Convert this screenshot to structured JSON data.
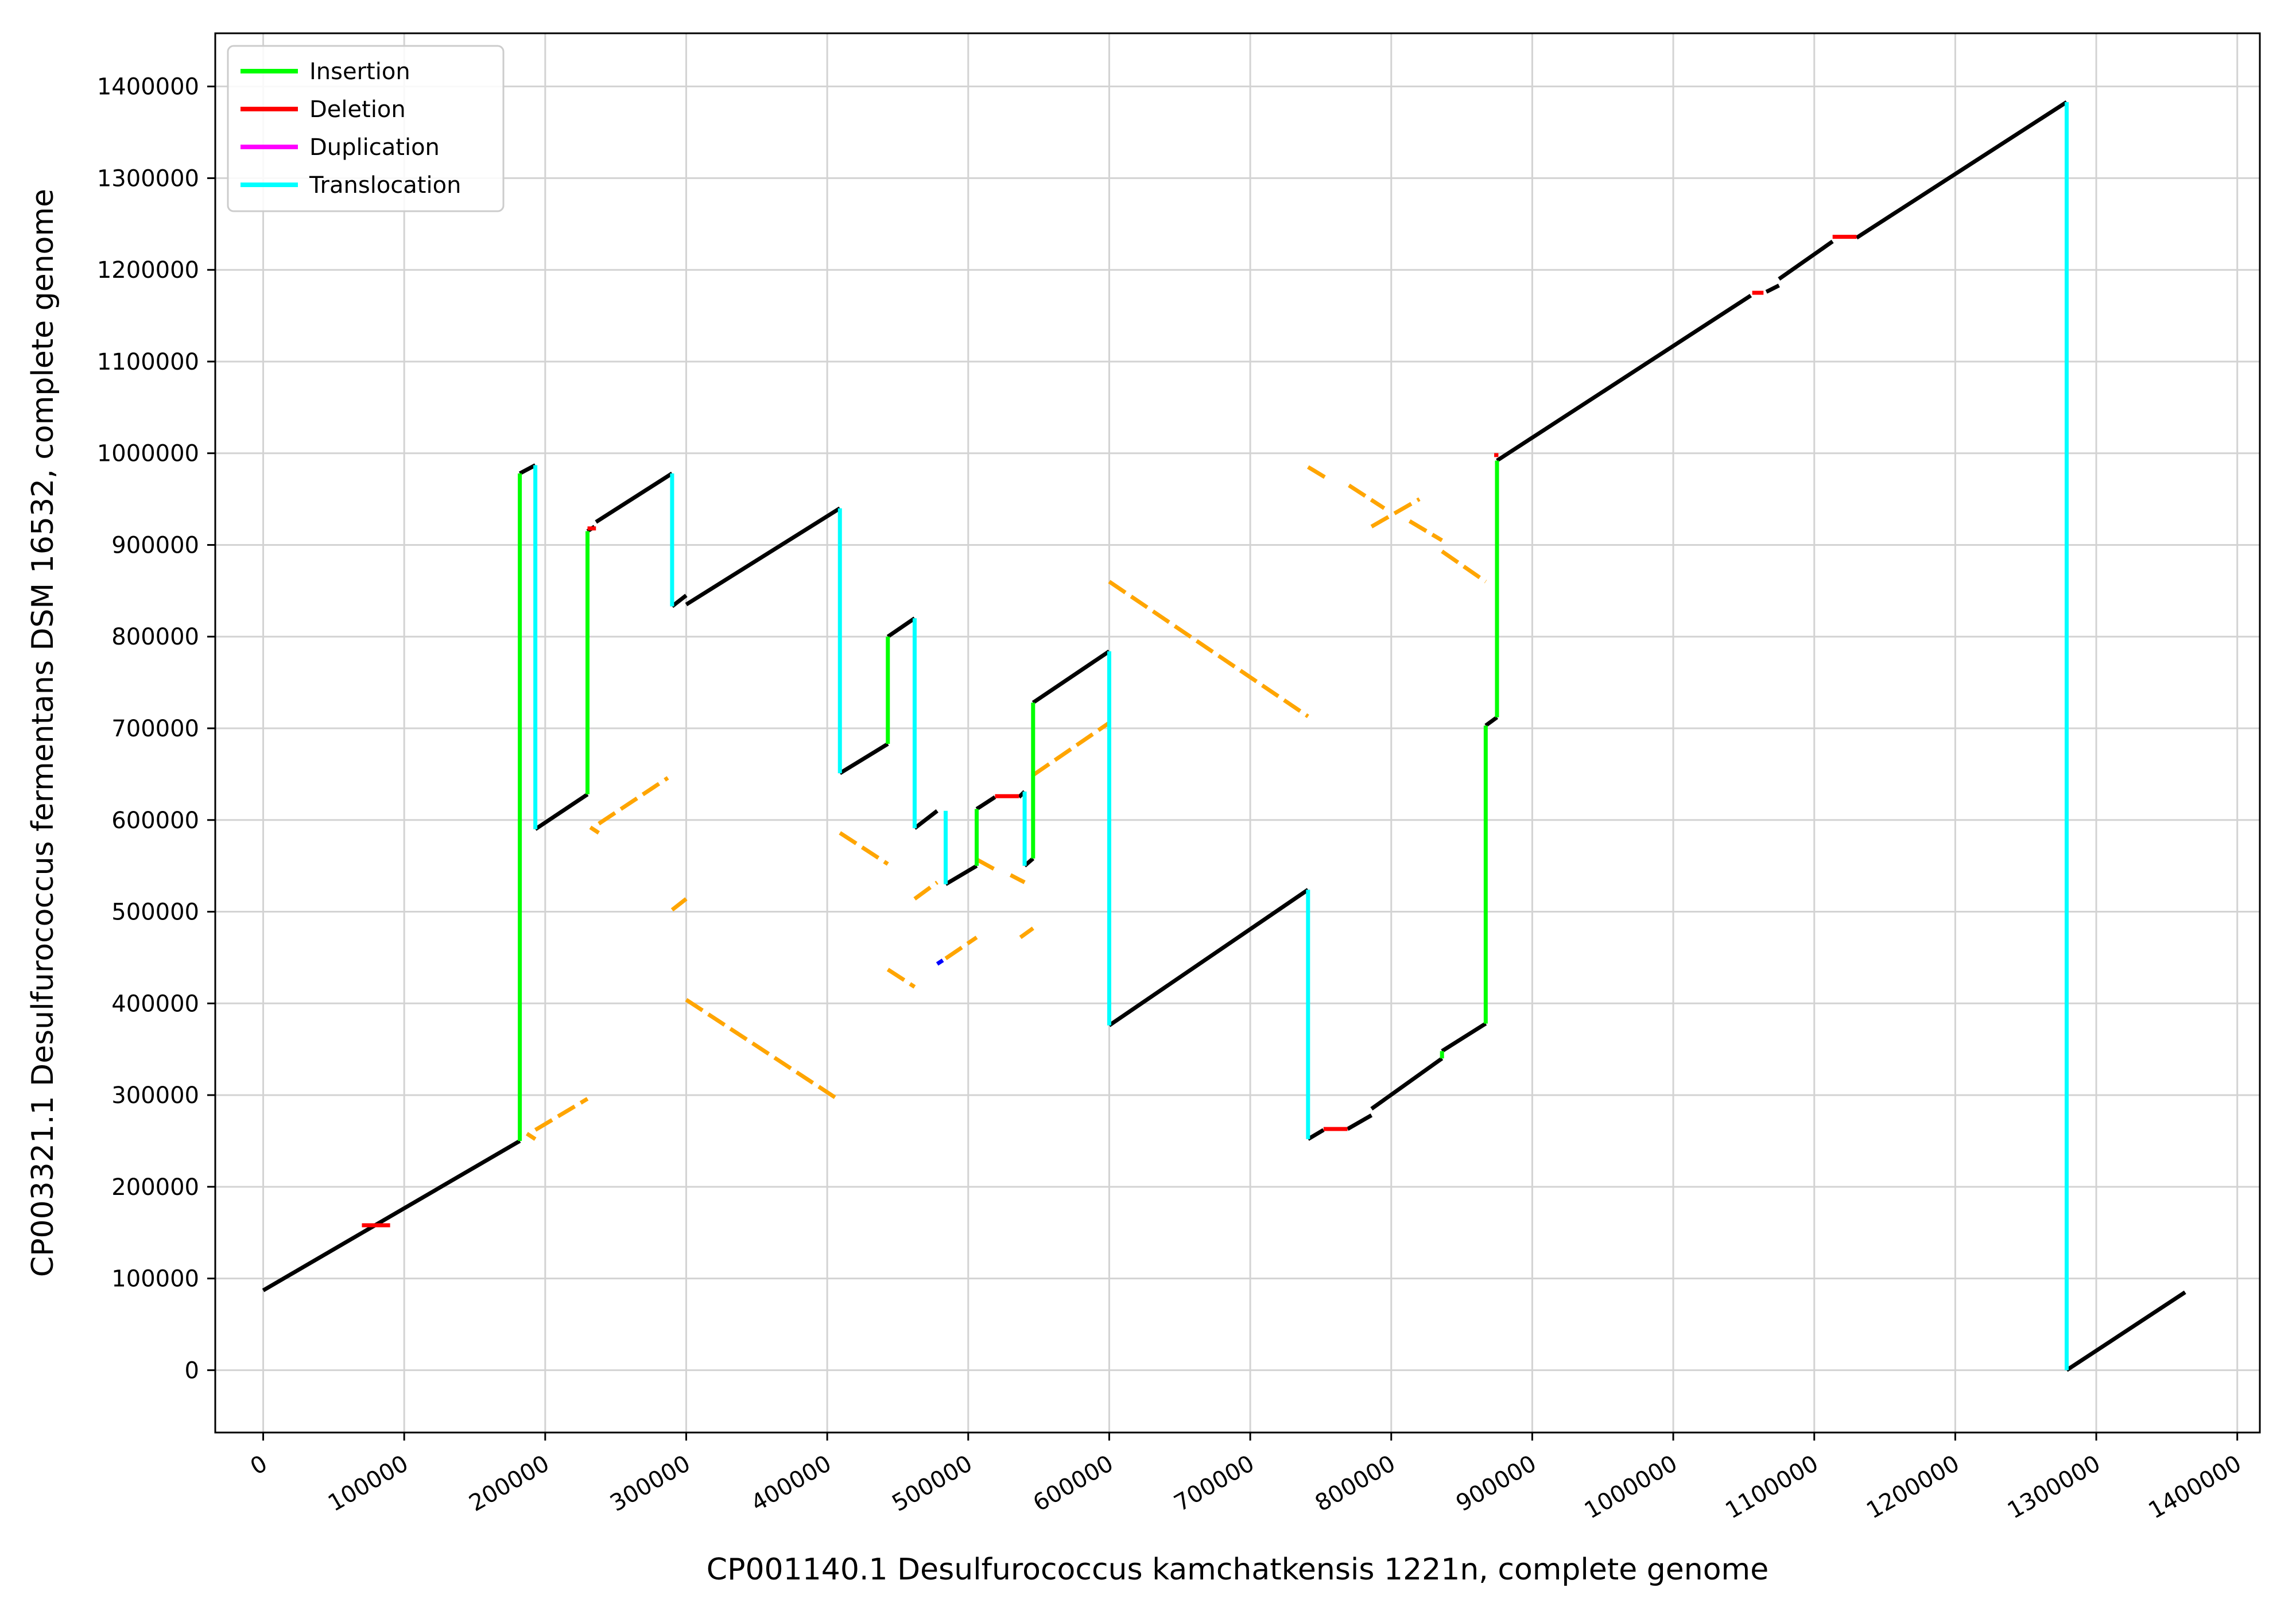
{
  "chart_data": {
    "type": "line",
    "title": "",
    "xlabel": "CP001140.1 Desulfurococcus kamchatkensis 1221n, complete genome",
    "ylabel": "CP003321.1 Desulfurococcus fermentans DSM 16532, complete genome",
    "xlim": [
      -34000,
      1416000
    ],
    "ylim": [
      -68000,
      1458000
    ],
    "x_ticks": [
      0,
      100000,
      200000,
      300000,
      400000,
      500000,
      600000,
      700000,
      800000,
      900000,
      1000000,
      1100000,
      1200000,
      1300000,
      1400000
    ],
    "y_ticks": [
      0,
      100000,
      200000,
      300000,
      400000,
      500000,
      600000,
      700000,
      800000,
      900000,
      1000000,
      1100000,
      1200000,
      1300000,
      1400000
    ],
    "x_tick_labels": [
      "0",
      "100000",
      "200000",
      "300000",
      "400000",
      "500000",
      "600000",
      "700000",
      "800000",
      "900000",
      "1000000",
      "1100000",
      "1200000",
      "1300000",
      "1400000"
    ],
    "y_tick_labels": [
      "0",
      "100000",
      "200000",
      "300000",
      "400000",
      "500000",
      "600000",
      "700000",
      "800000",
      "900000",
      "1000000",
      "1100000",
      "1200000",
      "1300000",
      "1400000"
    ],
    "grid": true,
    "legend_position": "top-left",
    "legend": [
      {
        "name": "Insertion",
        "color": "#00ff00"
      },
      {
        "name": "Deletion",
        "color": "#ff0000"
      },
      {
        "name": "Duplication",
        "color": "#ff00ff"
      },
      {
        "name": "Translocation",
        "color": "#00ffff"
      }
    ],
    "colors": {
      "syntenic": "#000000",
      "inversion": "#ffa500",
      "minor": "#0000ff",
      "grid": "#d3d3d3"
    },
    "series": [
      {
        "kind": "syntenic",
        "color": "#000000",
        "segments": [
          [
            [
              0,
              87000
            ],
            [
              182000,
              250000
            ]
          ],
          [
            [
              182000,
              978000
            ],
            [
              193000,
              987000
            ]
          ],
          [
            [
              193000,
              590000
            ],
            [
              230000,
              628000
            ]
          ],
          [
            [
              230000,
              915000
            ],
            [
              235000,
              920000
            ]
          ],
          [
            [
              236000,
              925000
            ],
            [
              290000,
              978000
            ]
          ],
          [
            [
              290000,
              833000
            ],
            [
              300000,
              845000
            ]
          ],
          [
            [
              300000,
              835000
            ],
            [
              409000,
              940000
            ]
          ],
          [
            [
              409000,
              651000
            ],
            [
              443000,
              683000
            ]
          ],
          [
            [
              443000,
              800000
            ],
            [
              462000,
              820000
            ]
          ],
          [
            [
              462000,
              591000
            ],
            [
              478000,
              610000
            ]
          ],
          [
            [
              484000,
              530000
            ],
            [
              506000,
              550000
            ]
          ],
          [
            [
              506000,
              612000
            ],
            [
              519000,
              625000
            ]
          ],
          [
            [
              536000,
              625000
            ],
            [
              540000,
              631000
            ]
          ],
          [
            [
              540000,
              550000
            ],
            [
              546000,
              558000
            ]
          ],
          [
            [
              546000,
              728000
            ],
            [
              600000,
              784000
            ]
          ],
          [
            [
              600000,
              376000
            ],
            [
              741000,
              524000
            ]
          ],
          [
            [
              741000,
              252000
            ],
            [
              752000,
              262000
            ]
          ],
          [
            [
              769000,
              263000
            ],
            [
              786000,
              278000
            ]
          ],
          [
            [
              786000,
              285000
            ],
            [
              836000,
              340000
            ]
          ],
          [
            [
              836000,
              348000
            ],
            [
              867000,
              378000
            ]
          ],
          [
            [
              867000,
              703000
            ],
            [
              875000,
              712000
            ]
          ],
          [
            [
              875000,
              992000
            ],
            [
              1055000,
              1172000
            ]
          ],
          [
            [
              1066000,
              1176000
            ],
            [
              1075000,
              1183000
            ]
          ],
          [
            [
              1075000,
              1190000
            ],
            [
              1113000,
              1231000
            ]
          ],
          [
            [
              1130000,
              1235000
            ],
            [
              1279000,
              1383000
            ]
          ],
          [
            [
              1279000,
              0
            ],
            [
              1363000,
              85000
            ]
          ]
        ]
      },
      {
        "kind": "inversion",
        "color": "#ffa500",
        "segments": [
          [
            [
              187000,
              258000
            ],
            [
              193000,
              252000
            ]
          ],
          [
            [
              193000,
              262000
            ],
            [
              230000,
              296000
            ]
          ],
          [
            [
              232000,
              592000
            ],
            [
              238000,
              586000
            ]
          ],
          [
            [
              238000,
              596000
            ],
            [
              287000,
              646000
            ]
          ],
          [
            [
              290000,
              502000
            ],
            [
              300000,
              514000
            ]
          ],
          [
            [
              300000,
              404000
            ],
            [
              409000,
              294000
            ]
          ],
          [
            [
              409000,
              586000
            ],
            [
              443000,
              552000
            ]
          ],
          [
            [
              443000,
              437000
            ],
            [
              462000,
              418000
            ]
          ],
          [
            [
              462000,
              514000
            ],
            [
              478000,
              532000
            ]
          ],
          [
            [
              484000,
              449000
            ],
            [
              506000,
              472000
            ]
          ],
          [
            [
              506000,
              557000
            ],
            [
              519000,
              546000
            ]
          ],
          [
            [
              530000,
              540000
            ],
            [
              540000,
              532000
            ]
          ],
          [
            [
              537000,
              472000
            ],
            [
              546000,
              482000
            ]
          ],
          [
            [
              546000,
              649000
            ],
            [
              600000,
              706000
            ]
          ],
          [
            [
              600000,
              860000
            ],
            [
              741000,
              713000
            ]
          ],
          [
            [
              741000,
              985000
            ],
            [
              755000,
              972000
            ]
          ],
          [
            [
              770000,
              965000
            ],
            [
              795000,
              940000
            ]
          ],
          [
            [
              786000,
              920000
            ],
            [
              820000,
              950000
            ]
          ],
          [
            [
              813000,
              926000
            ],
            [
              836000,
              905000
            ]
          ],
          [
            [
              836000,
              893000
            ],
            [
              867000,
              860000
            ]
          ]
        ]
      },
      {
        "kind": "minor",
        "color": "#0000ff",
        "segments": [
          [
            [
              478000,
              443000
            ],
            [
              482000,
              447000
            ]
          ]
        ]
      },
      {
        "kind": "deletion",
        "color": "#ff0000",
        "segments": [
          [
            [
              70000,
              158000
            ],
            [
              90000,
              158000
            ]
          ],
          [
            [
              230000,
              918000
            ],
            [
              236000,
              918000
            ]
          ],
          [
            [
              519000,
              626000
            ],
            [
              536000,
              626000
            ]
          ],
          [
            [
              752000,
              263000
            ],
            [
              769000,
              263000
            ]
          ],
          [
            [
              873000,
              998000
            ],
            [
              876000,
              998000
            ]
          ],
          [
            [
              1056000,
              1175000
            ],
            [
              1064000,
              1175000
            ]
          ],
          [
            [
              1113000,
              1236000
            ],
            [
              1130000,
              1236000
            ]
          ]
        ]
      },
      {
        "kind": "insertion",
        "color": "#00ff00",
        "segments": [
          [
            [
              182000,
              250000
            ],
            [
              182000,
              978000
            ]
          ],
          [
            [
              230000,
              628000
            ],
            [
              230000,
              915000
            ]
          ],
          [
            [
              443000,
              683000
            ],
            [
              443000,
              800000
            ]
          ],
          [
            [
              506000,
              550000
            ],
            [
              506000,
              612000
            ]
          ],
          [
            [
              546000,
              558000
            ],
            [
              546000,
              728000
            ]
          ],
          [
            [
              836000,
              340000
            ],
            [
              836000,
              348000
            ]
          ],
          [
            [
              867000,
              378000
            ],
            [
              867000,
              703000
            ]
          ],
          [
            [
              875000,
              712000
            ],
            [
              875000,
              992000
            ]
          ]
        ]
      },
      {
        "kind": "translocation",
        "color": "#00ffff",
        "segments": [
          [
            [
              193000,
              987000
            ],
            [
              193000,
              590000
            ]
          ],
          [
            [
              290000,
              978000
            ],
            [
              290000,
              833000
            ]
          ],
          [
            [
              409000,
              940000
            ],
            [
              409000,
              651000
            ]
          ],
          [
            [
              462000,
              820000
            ],
            [
              462000,
              591000
            ]
          ],
          [
            [
              484000,
              610000
            ],
            [
              484000,
              530000
            ]
          ],
          [
            [
              540000,
              631000
            ],
            [
              540000,
              550000
            ]
          ],
          [
            [
              600000,
              784000
            ],
            [
              600000,
              376000
            ]
          ],
          [
            [
              741000,
              524000
            ],
            [
              741000,
              252000
            ]
          ],
          [
            [
              1279000,
              1383000
            ],
            [
              1279000,
              0
            ]
          ]
        ]
      }
    ]
  }
}
